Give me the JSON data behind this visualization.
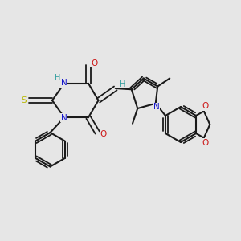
{
  "background_color": "#e6e6e6",
  "bond_color": "#1a1a1a",
  "N_color": "#1515cc",
  "O_color": "#cc1515",
  "S_color": "#b8b800",
  "H_color": "#35a0a0",
  "figsize": [
    3.0,
    3.0
  ],
  "dpi": 100,
  "xlim": [
    0,
    12
  ],
  "ylim": [
    0,
    12
  ]
}
